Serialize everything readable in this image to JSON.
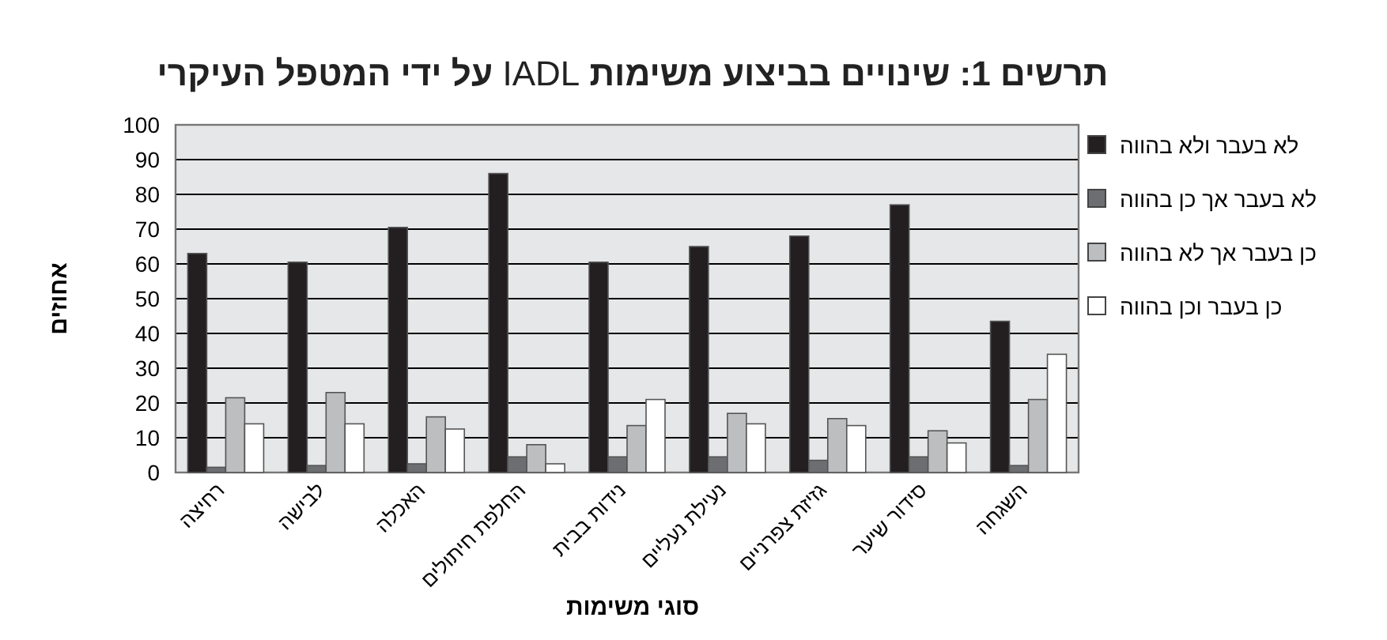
{
  "chart_data": {
    "type": "bar",
    "title": "**תרשים 1: שינויים בביצוע משימות** IADL **על ידי המטפל העיקרי**",
    "xlabel": "סוגי משימות",
    "ylabel": "אחוזים",
    "categories": [
      "רחיצה",
      "לבישה",
      "האכלה",
      "החלפת חיתולים",
      "נידות בבית",
      "נעילת נעליים",
      "גזיזת צפרניים",
      "סידור שיער",
      "השגחה"
    ],
    "series": [
      {
        "name": "לא בעבר ולא בהווה",
        "color": "#231f20",
        "values": [
          63,
          60.5,
          70.5,
          86,
          60.5,
          65,
          68,
          77,
          43.5
        ]
      },
      {
        "name": "לא בעבר אך כן בהווה",
        "color": "#6d6e71",
        "values": [
          1.5,
          2,
          2.5,
          4.5,
          4.5,
          4.5,
          3.5,
          4.5,
          2
        ]
      },
      {
        "name": "כן בעבר אך לא בהווה",
        "color": "#bcbec0",
        "values": [
          21.5,
          23,
          16,
          8,
          13.5,
          17,
          15.5,
          12,
          21
        ]
      },
      {
        "name": "כן בעבר וכן בהווה",
        "color": "#ffffff",
        "values": [
          14,
          14,
          12.5,
          2.5,
          21,
          14,
          13.5,
          8.5,
          34
        ]
      }
    ],
    "ylim": [
      0,
      100
    ],
    "yticks": [
      0,
      10,
      20,
      30,
      40,
      50,
      60,
      70,
      80,
      90,
      100
    ],
    "grid": "y",
    "legend": "right"
  }
}
